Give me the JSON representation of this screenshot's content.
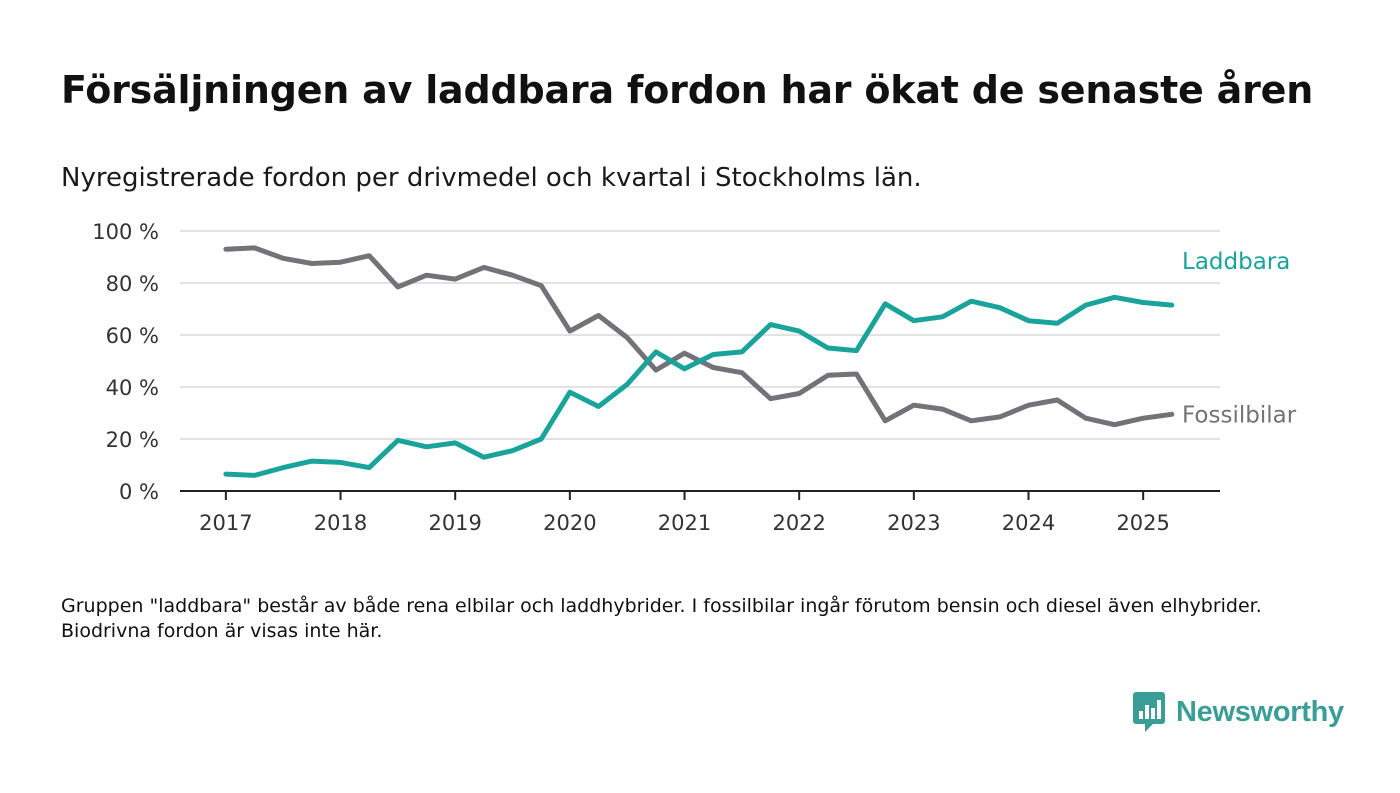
{
  "title": "Försäljningen av laddbara fordon har ökat de senaste åren",
  "subtitle": "Nyregistrerade fordon per drivmedel och kvartal i Stockholms län.",
  "footnote": "Gruppen \"laddbara\" består av både rena elbilar och laddhybrider. I fossilbilar ingår förutom bensin och diesel även elhybrider. Biodrivna fordon är visas inte här.",
  "brand": {
    "name": "Newsworthy",
    "icon": "newsworthy-logo-icon",
    "color": "#3b9e96"
  },
  "chart_data": {
    "type": "line",
    "x": [
      2017.0,
      2017.25,
      2017.5,
      2017.75,
      2018.0,
      2018.25,
      2018.5,
      2018.75,
      2019.0,
      2019.25,
      2019.5,
      2019.75,
      2020.0,
      2020.25,
      2020.5,
      2020.75,
      2021.0,
      2021.25,
      2021.5,
      2021.75,
      2022.0,
      2022.25,
      2022.5,
      2022.75,
      2023.0,
      2023.25,
      2023.5,
      2023.75,
      2024.0,
      2024.25,
      2024.5,
      2024.75,
      2025.0,
      2025.25
    ],
    "series": [
      {
        "name": "Laddbara",
        "color": "#1aa39a",
        "values": [
          6.5,
          6,
          9,
          11.5,
          11,
          9,
          19.5,
          17,
          18.5,
          13,
          15.5,
          20,
          38,
          32.5,
          41,
          53.5,
          47,
          52.5,
          53.5,
          64,
          61.5,
          55,
          54,
          72,
          65.5,
          67,
          73,
          70.5,
          65.5,
          64.5,
          71.5,
          74.5,
          72.5,
          71.5
        ]
      },
      {
        "name": "Fossilbilar",
        "color": "#737279",
        "values": [
          93,
          93.5,
          89.5,
          87.5,
          88,
          90.5,
          78.5,
          83,
          81.5,
          86,
          83,
          79,
          61.5,
          67.5,
          59,
          46.5,
          53,
          47.5,
          45.5,
          35.5,
          37.5,
          44.5,
          45,
          27,
          33,
          31.5,
          27,
          28.5,
          33,
          35,
          28,
          25.5,
          28,
          29.5
        ]
      }
    ],
    "xticks": [
      2017,
      2018,
      2019,
      2020,
      2021,
      2022,
      2023,
      2024,
      2025
    ],
    "xtick_labels": [
      "2017",
      "2018",
      "2019",
      "2020",
      "2021",
      "2022",
      "2023",
      "2024",
      "2025"
    ],
    "yticks": [
      0,
      20,
      40,
      60,
      80,
      100
    ],
    "ytick_labels": [
      "0 %",
      "20 %",
      "40 %",
      "60 %",
      "80 %",
      "100 %"
    ],
    "xlim": [
      2016.6,
      2025.67
    ],
    "ylim": [
      0,
      100
    ],
    "xlabel": "",
    "ylabel": "",
    "grid": true,
    "legend": "inline-right"
  }
}
